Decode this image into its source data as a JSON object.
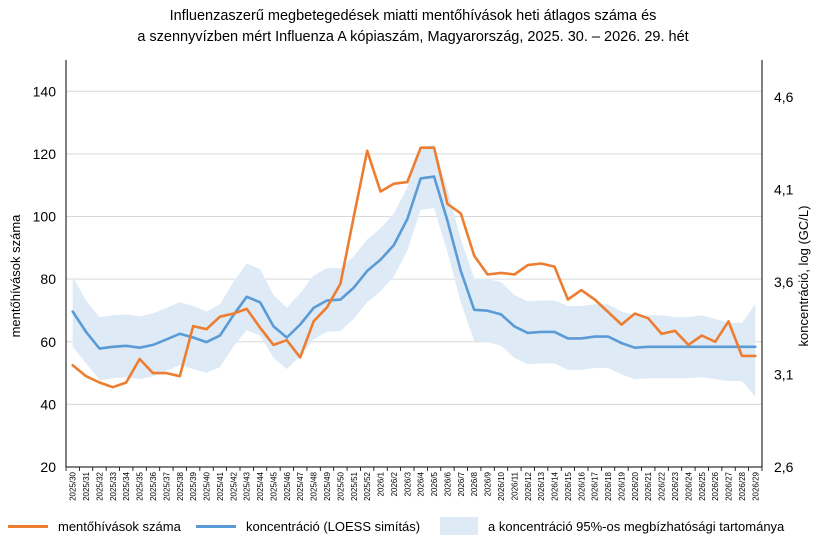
{
  "chart_data": {
    "type": "line",
    "title_lines": [
      "Influenzaszerű megbetegedések miatti mentőhívások heti átlagos száma és",
      "a szennyvízben mért Influenza A kópiaszám, Magyarország, 2025. 30. – 2026. 29. hét"
    ],
    "ylabel_left": "mentőhívások száma",
    "ylabel_right": "koncentráció, log (GC/L)",
    "ylim_left": [
      20,
      150
    ],
    "yticks_left": [
      20,
      40,
      60,
      80,
      100,
      120,
      140
    ],
    "ylim_right": [
      2.6,
      4.8
    ],
    "yticks_right": [
      "2,6",
      "3,1",
      "3,6",
      "4,1",
      "4,6"
    ],
    "yticks_right_values": [
      2.6,
      3.1,
      3.6,
      4.1,
      4.6
    ],
    "categories": [
      "2025/30",
      "2025/31",
      "2025/32",
      "2025/33",
      "2025/34",
      "2025/35",
      "2025/36",
      "2025/37",
      "2025/38",
      "2025/39",
      "2025/40",
      "2025/41",
      "2025/42",
      "2025/43",
      "2025/44",
      "2025/45",
      "2025/46",
      "2025/47",
      "2025/48",
      "2025/49",
      "2025/50",
      "2025/51",
      "2025/52",
      "2026/1",
      "2026/2",
      "2026/3",
      "2026/4",
      "2026/5",
      "2026/6",
      "2026/7",
      "2026/8",
      "2026/9",
      "2026/10",
      "2026/11",
      "2026/12",
      "2026/13",
      "2026/14",
      "2026/15",
      "2026/16",
      "2026/17",
      "2026/18",
      "2026/19",
      "2026/20",
      "2026/21",
      "2026/22",
      "2026/23",
      "2026/24",
      "2026/25",
      "2026/26",
      "2026/27",
      "2026/28",
      "2026/29"
    ],
    "series": [
      {
        "name": "mentőhívások száma",
        "axis": "left",
        "color": "#ED7D31",
        "values": [
          52.5,
          49,
          47,
          45.5,
          47,
          54.5,
          50,
          50,
          49,
          65,
          64,
          68,
          69,
          70.5,
          64.5,
          59,
          60.5,
          55,
          66.5,
          71,
          78.5,
          100,
          121,
          108,
          110.5,
          111,
          122,
          122,
          104,
          101,
          87.5,
          81.5,
          82,
          81.5,
          84.5,
          85,
          84,
          73.5,
          76.5,
          73.5,
          69.5,
          65.5,
          69,
          67.5,
          62.5,
          63.5,
          59,
          62,
          60,
          66.5,
          55.5,
          55.5
        ]
      },
      {
        "name": "koncentráció (LOESS simítás)",
        "axis": "right",
        "color": "#5B9BD5",
        "values": [
          3.44,
          3.33,
          3.24,
          3.25,
          3.255,
          3.245,
          3.26,
          3.29,
          3.32,
          3.3,
          3.275,
          3.31,
          3.42,
          3.52,
          3.49,
          3.36,
          3.3,
          3.37,
          3.46,
          3.5,
          3.505,
          3.57,
          3.66,
          3.72,
          3.8,
          3.94,
          4.16,
          4.17,
          3.93,
          3.66,
          3.45,
          3.445,
          3.425,
          3.36,
          3.325,
          3.33,
          3.33,
          3.295,
          3.295,
          3.305,
          3.305,
          3.27,
          3.245,
          3.25,
          3.25,
          3.25,
          3.25,
          3.25,
          3.25,
          3.25,
          3.25,
          3.25
        ]
      },
      {
        "name": "a koncentráció 95%-os megbízhatósági tartománya",
        "axis": "right",
        "color": "#DEEBF7",
        "upper": [
          3.63,
          3.5,
          3.41,
          3.42,
          3.425,
          3.415,
          3.43,
          3.46,
          3.49,
          3.47,
          3.44,
          3.48,
          3.6,
          3.7,
          3.67,
          3.53,
          3.46,
          3.54,
          3.635,
          3.675,
          3.675,
          3.74,
          3.83,
          3.89,
          3.97,
          4.11,
          4.33,
          4.34,
          4.1,
          3.83,
          3.62,
          3.615,
          3.6,
          3.53,
          3.495,
          3.5,
          3.5,
          3.47,
          3.47,
          3.48,
          3.48,
          3.44,
          3.42,
          3.42,
          3.42,
          3.41,
          3.41,
          3.42,
          3.4,
          3.38,
          3.38,
          3.48
        ],
        "lower": [
          3.25,
          3.16,
          3.07,
          3.08,
          3.085,
          3.075,
          3.09,
          3.12,
          3.15,
          3.13,
          3.11,
          3.14,
          3.25,
          3.34,
          3.31,
          3.19,
          3.13,
          3.2,
          3.29,
          3.33,
          3.335,
          3.4,
          3.49,
          3.55,
          3.63,
          3.77,
          3.99,
          4.0,
          3.76,
          3.49,
          3.28,
          3.275,
          3.255,
          3.19,
          3.155,
          3.16,
          3.16,
          3.125,
          3.125,
          3.135,
          3.135,
          3.1,
          3.075,
          3.08,
          3.08,
          3.08,
          3.08,
          3.085,
          3.075,
          3.065,
          3.065,
          2.98
        ]
      }
    ],
    "legend_position": "bottom",
    "grid": "horizontal"
  }
}
